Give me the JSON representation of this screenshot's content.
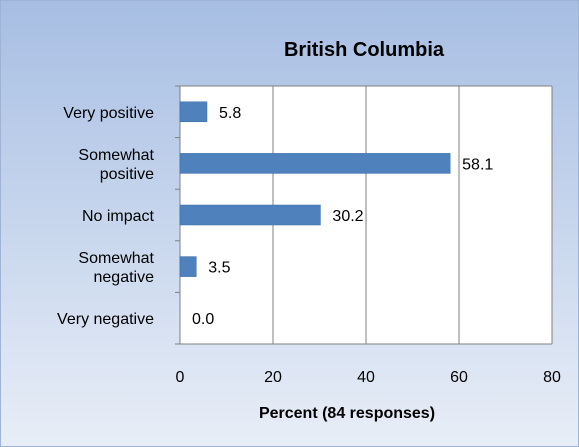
{
  "chart_data": {
    "type": "bar",
    "orientation": "horizontal",
    "title": "British Columbia",
    "xlabel": "Percent (84 responses)",
    "ylabel": "",
    "categories": [
      [
        "Very positive"
      ],
      [
        "Somewhat",
        "positive"
      ],
      [
        "No impact"
      ],
      [
        "Somewhat",
        "negative"
      ],
      [
        "Very negative"
      ]
    ],
    "values": [
      5.8,
      58.1,
      30.2,
      3.5,
      0.0
    ],
    "data_labels": [
      "5.8",
      "58.1",
      "30.2",
      "3.5",
      "0.0"
    ],
    "xlim": [
      0,
      80
    ],
    "xticks": [
      0,
      20,
      40,
      60,
      80
    ],
    "grid": true,
    "legend": "none",
    "colors": {
      "bar": "#4F81BD",
      "bar_stroke": "#3B6AA3",
      "plot_bg": "#ffffff",
      "background_top": "#A7BEE3",
      "background_bottom": "#E8EEF7",
      "border": "#9FB4D4",
      "grid": "#808080",
      "text": "#000000"
    }
  }
}
